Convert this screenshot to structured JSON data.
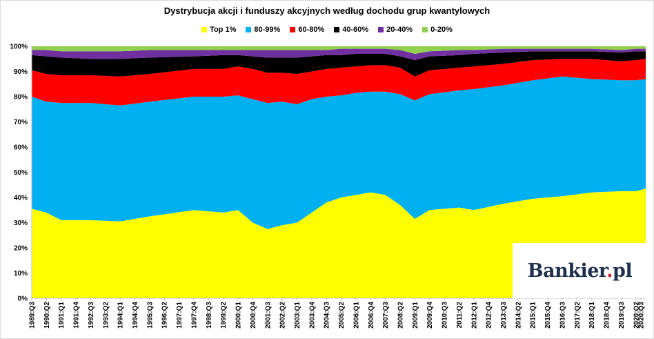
{
  "chart_data": {
    "type": "area",
    "stacked": true,
    "title": "Dystrybucja akcji i funduszy akcyjnych według dochodu grup kwantylowych",
    "legend_position": "top",
    "grid": false,
    "ylim": [
      0,
      100
    ],
    "y_ticks": [
      "0%",
      "10%",
      "20%",
      "30%",
      "40%",
      "50%",
      "60%",
      "70%",
      "80%",
      "90%",
      "100%"
    ],
    "x_start": "1989:Q3",
    "x_end": "2020:Q4",
    "x_tick_labels": [
      "1989:Q3",
      "1990:Q2",
      "1991:Q1",
      "1991:Q4",
      "1992:Q3",
      "1993:Q2",
      "1994:Q1",
      "1994:Q4",
      "1995:Q3",
      "1996:Q2",
      "1997:Q1",
      "1997:Q4",
      "1998:Q3",
      "1999:Q2",
      "2000:Q1",
      "2000:Q4",
      "2001:Q3",
      "2002:Q2",
      "2003:Q1",
      "2003:Q4",
      "2004:Q3",
      "2005:Q2",
      "2006:Q1",
      "2006:Q4",
      "2007:Q3",
      "2008:Q2",
      "2009:Q1",
      "2009:Q4",
      "2010:Q3",
      "2011:Q2",
      "2012:Q1",
      "2012:Q4",
      "2013:Q3",
      "2014:Q2",
      "2015:Q1",
      "2015:Q4",
      "2016:Q3",
      "2017:Q2",
      "2018:Q1",
      "2018:Q4",
      "2019:Q3",
      "2020:Q2",
      "2020:Q3"
    ],
    "series": [
      {
        "name": "Top 1%",
        "color": "#ffff00",
        "anchors": [
          [
            "1989:Q3",
            35.5
          ],
          [
            "1990:Q2",
            34
          ],
          [
            "1991:Q1",
            31
          ],
          [
            "1992:Q3",
            31
          ],
          [
            "1994:Q1",
            30.5
          ],
          [
            "1995:Q3",
            32.5
          ],
          [
            "1997:Q4",
            35
          ],
          [
            "1999:Q2",
            34
          ],
          [
            "2000:Q1",
            35
          ],
          [
            "2000:Q4",
            30
          ],
          [
            "2001:Q3",
            27.5
          ],
          [
            "2002:Q2",
            29
          ],
          [
            "2003:Q1",
            30
          ],
          [
            "2003:Q4",
            34
          ],
          [
            "2004:Q3",
            38
          ],
          [
            "2005:Q2",
            40
          ],
          [
            "2006:Q1",
            41
          ],
          [
            "2006:Q4",
            42
          ],
          [
            "2007:Q3",
            41
          ],
          [
            "2008:Q2",
            37
          ],
          [
            "2009:Q1",
            31.5
          ],
          [
            "2009:Q4",
            35
          ],
          [
            "2011:Q2",
            36
          ],
          [
            "2012:Q1",
            35
          ],
          [
            "2013:Q3",
            37.5
          ],
          [
            "2015:Q1",
            39.5
          ],
          [
            "2016:Q3",
            40.5
          ],
          [
            "2018:Q1",
            42
          ],
          [
            "2019:Q3",
            42.5
          ],
          [
            "2020:Q2",
            42.5
          ],
          [
            "2020:Q4",
            43.5
          ]
        ]
      },
      {
        "name": "80-99%",
        "color": "#00b0f0",
        "anchors": [
          [
            "1989:Q3",
            80
          ],
          [
            "1990:Q2",
            78
          ],
          [
            "1991:Q1",
            77.5
          ],
          [
            "1992:Q3",
            77.5
          ],
          [
            "1994:Q1",
            76.5
          ],
          [
            "1995:Q3",
            78
          ],
          [
            "1997:Q4",
            80
          ],
          [
            "1999:Q2",
            80
          ],
          [
            "2000:Q1",
            80.5
          ],
          [
            "2000:Q4",
            79
          ],
          [
            "2001:Q3",
            77.5
          ],
          [
            "2002:Q2",
            78
          ],
          [
            "2003:Q1",
            77
          ],
          [
            "2003:Q4",
            79
          ],
          [
            "2004:Q3",
            80
          ],
          [
            "2005:Q2",
            80.5
          ],
          [
            "2006:Q1",
            81.5
          ],
          [
            "2006:Q4",
            82
          ],
          [
            "2007:Q3",
            82
          ],
          [
            "2008:Q2",
            81
          ],
          [
            "2009:Q1",
            78.5
          ],
          [
            "2009:Q4",
            81
          ],
          [
            "2011:Q2",
            82.5
          ],
          [
            "2012:Q1",
            83
          ],
          [
            "2013:Q3",
            84.5
          ],
          [
            "2015:Q1",
            86.5
          ],
          [
            "2016:Q3",
            88
          ],
          [
            "2018:Q1",
            87
          ],
          [
            "2019:Q3",
            86.5
          ],
          [
            "2020:Q2",
            86.5
          ],
          [
            "2020:Q4",
            87
          ]
        ]
      },
      {
        "name": "60-80%",
        "color": "#ff0000",
        "anchors": [
          [
            "1989:Q3",
            90.5
          ],
          [
            "1990:Q2",
            89
          ],
          [
            "1991:Q1",
            88.5
          ],
          [
            "1992:Q3",
            88.5
          ],
          [
            "1994:Q1",
            88
          ],
          [
            "1995:Q3",
            89
          ],
          [
            "1997:Q4",
            91
          ],
          [
            "1999:Q2",
            91
          ],
          [
            "2000:Q1",
            92
          ],
          [
            "2000:Q4",
            91
          ],
          [
            "2001:Q3",
            89.5
          ],
          [
            "2002:Q2",
            89.5
          ],
          [
            "2003:Q1",
            89
          ],
          [
            "2003:Q4",
            90
          ],
          [
            "2004:Q3",
            91
          ],
          [
            "2005:Q2",
            91.5
          ],
          [
            "2006:Q1",
            92
          ],
          [
            "2006:Q4",
            92.5
          ],
          [
            "2007:Q3",
            92.5
          ],
          [
            "2008:Q2",
            91.5
          ],
          [
            "2009:Q1",
            88
          ],
          [
            "2009:Q4",
            90.5
          ],
          [
            "2011:Q2",
            91.5
          ],
          [
            "2012:Q1",
            92
          ],
          [
            "2013:Q3",
            93
          ],
          [
            "2015:Q1",
            94.5
          ],
          [
            "2016:Q3",
            95
          ],
          [
            "2018:Q1",
            95
          ],
          [
            "2019:Q3",
            94
          ],
          [
            "2020:Q2",
            94.5
          ],
          [
            "2020:Q4",
            95
          ]
        ]
      },
      {
        "name": "40-60%",
        "color": "#000000",
        "anchors": [
          [
            "1989:Q3",
            96.5
          ],
          [
            "1990:Q2",
            96
          ],
          [
            "1991:Q1",
            95.5
          ],
          [
            "1992:Q3",
            95
          ],
          [
            "1994:Q1",
            95
          ],
          [
            "1995:Q3",
            95.5
          ],
          [
            "1997:Q4",
            96
          ],
          [
            "1999:Q2",
            96.5
          ],
          [
            "2000:Q1",
            96.5
          ],
          [
            "2000:Q4",
            96
          ],
          [
            "2001:Q3",
            95.5
          ],
          [
            "2002:Q2",
            95.5
          ],
          [
            "2003:Q1",
            95.5
          ],
          [
            "2003:Q4",
            96
          ],
          [
            "2004:Q3",
            96.5
          ],
          [
            "2005:Q2",
            96.5
          ],
          [
            "2006:Q1",
            97
          ],
          [
            "2006:Q4",
            97
          ],
          [
            "2007:Q3",
            97
          ],
          [
            "2008:Q2",
            96
          ],
          [
            "2009:Q1",
            94.5
          ],
          [
            "2009:Q4",
            96
          ],
          [
            "2011:Q2",
            96.5
          ],
          [
            "2012:Q1",
            97
          ],
          [
            "2013:Q3",
            97.5
          ],
          [
            "2015:Q1",
            98
          ],
          [
            "2016:Q3",
            98
          ],
          [
            "2018:Q1",
            98
          ],
          [
            "2019:Q3",
            97.5
          ],
          [
            "2020:Q2",
            98
          ],
          [
            "2020:Q4",
            98
          ]
        ]
      },
      {
        "name": "20-40%",
        "color": "#7030a0",
        "anchors": [
          [
            "1989:Q3",
            98.5
          ],
          [
            "1990:Q2",
            98.5
          ],
          [
            "1991:Q1",
            98
          ],
          [
            "1992:Q3",
            98
          ],
          [
            "1994:Q1",
            98
          ],
          [
            "1995:Q3",
            98.5
          ],
          [
            "1997:Q4",
            98.5
          ],
          [
            "1999:Q2",
            98.5
          ],
          [
            "2000:Q1",
            98.5
          ],
          [
            "2000:Q4",
            98.5
          ],
          [
            "2001:Q3",
            98.5
          ],
          [
            "2002:Q2",
            98.5
          ],
          [
            "2003:Q1",
            98.5
          ],
          [
            "2003:Q4",
            98.5
          ],
          [
            "2004:Q3",
            98.5
          ],
          [
            "2005:Q2",
            99
          ],
          [
            "2006:Q1",
            99
          ],
          [
            "2006:Q4",
            99
          ],
          [
            "2007:Q3",
            99
          ],
          [
            "2008:Q2",
            98.5
          ],
          [
            "2009:Q1",
            97
          ],
          [
            "2009:Q4",
            98
          ],
          [
            "2011:Q2",
            98.5
          ],
          [
            "2012:Q1",
            98.5
          ],
          [
            "2013:Q3",
            99
          ],
          [
            "2015:Q1",
            99
          ],
          [
            "2016:Q3",
            99
          ],
          [
            "2018:Q1",
            99
          ],
          [
            "2019:Q3",
            98.5
          ],
          [
            "2020:Q2",
            99
          ],
          [
            "2020:Q4",
            99
          ]
        ]
      },
      {
        "name": "0-20%",
        "color": "#92d050",
        "anchors": [
          [
            "1989:Q3",
            100
          ],
          [
            "2020:Q4",
            100
          ]
        ]
      }
    ]
  },
  "logo": {
    "brand": "Bankier",
    "dot": ".",
    "suffix": "pl"
  }
}
